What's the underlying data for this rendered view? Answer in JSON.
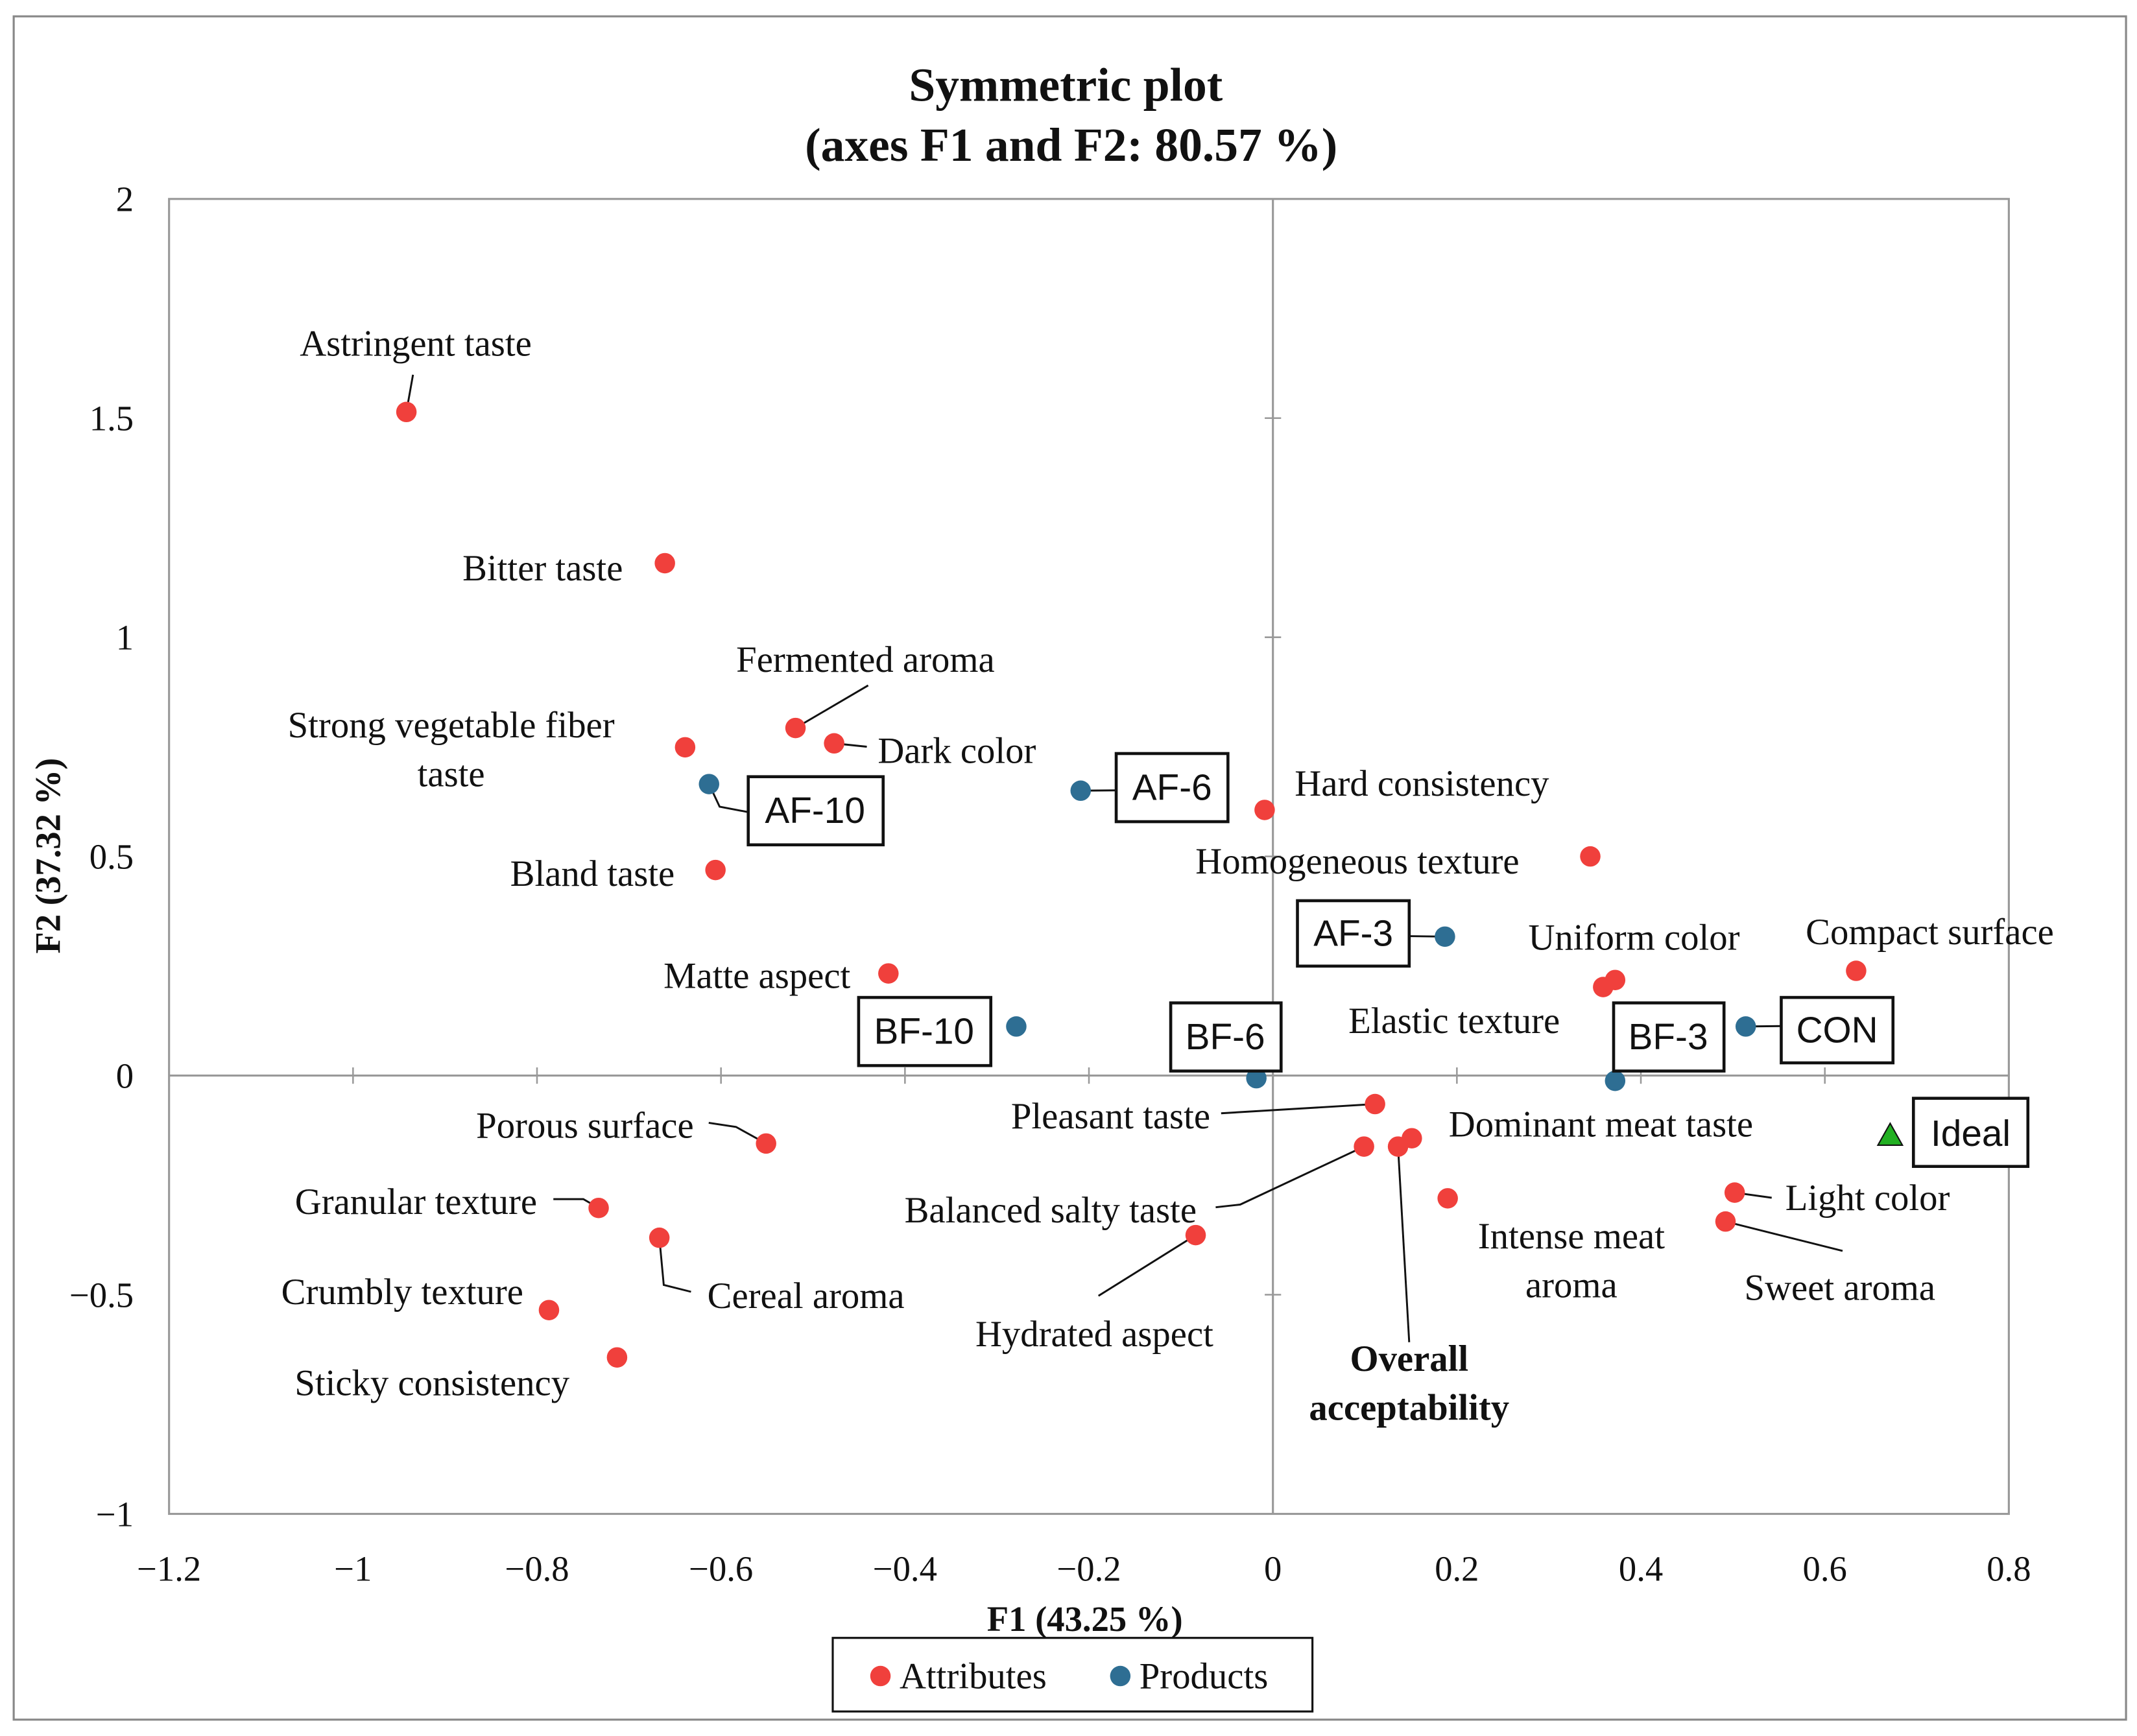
{
  "chart_data": {
    "type": "scatter",
    "title": [
      "Symmetric plot",
      "(axes F1 and F2: 80.57 %)"
    ],
    "xlabel": "F1 (43.25 %)",
    "ylabel": "F2 (37.32 %)",
    "xlim": [
      -1.2,
      0.8
    ],
    "ylim": [
      -1,
      2
    ],
    "xticks": [
      -1.2,
      -1,
      -0.8,
      -0.6,
      -0.4,
      -0.2,
      0,
      0.2,
      0.4,
      0.6,
      0.8
    ],
    "xtick_labels": [
      "−1.2",
      "−1",
      "−0.8",
      "−0.6",
      "−0.4",
      "−0.2",
      "0",
      "0.2",
      "0.4",
      "0.6",
      "0.8"
    ],
    "yticks": [
      -1,
      -0.5,
      0,
      0.5,
      1,
      1.5,
      2
    ],
    "ytick_labels": [
      "−1",
      "−0.5",
      "0",
      "0.5",
      "1",
      "1.5",
      "2"
    ],
    "grid": false,
    "legend": {
      "placement": "bottom",
      "entries": [
        "Attributes",
        "Products"
      ]
    },
    "colors": {
      "Attributes": "#f0403c",
      "Products": "#2e6e93",
      "Ideal": "#22b022"
    },
    "points": [
      {
        "label": "Astringent taste",
        "series": "Attributes",
        "x": -0.942,
        "y": 1.514
      },
      {
        "label": "Bitter taste",
        "series": "Attributes",
        "x": -0.661,
        "y": 1.169
      },
      {
        "label": "Fermented aroma",
        "series": "Attributes",
        "x": -0.519,
        "y": 0.793
      },
      {
        "label": "Dark color",
        "series": "Attributes",
        "x": -0.477,
        "y": 0.758
      },
      {
        "label": [
          "Strong vegetable fiber",
          "taste"
        ],
        "series": "Attributes",
        "x": -0.639,
        "y": 0.749
      },
      {
        "label": "AF-10",
        "series": "Products",
        "x": -0.613,
        "y": 0.665
      },
      {
        "label": "AF-6",
        "series": "Products",
        "x": -0.209,
        "y": 0.65
      },
      {
        "label": "Hard consistency",
        "series": "Attributes",
        "x": -0.009,
        "y": 0.606
      },
      {
        "label": "Bland taste",
        "series": "Attributes",
        "x": -0.606,
        "y": 0.469
      },
      {
        "label": "Homogeneous texture",
        "series": "Attributes",
        "x": 0.345,
        "y": 0.5
      },
      {
        "label": "AF-3",
        "series": "Products",
        "x": 0.187,
        "y": 0.317
      },
      {
        "label": "Uniform color",
        "series": "Attributes",
        "x": 0.372,
        "y": 0.218
      },
      {
        "label": "Elastic texture",
        "series": "Attributes",
        "x": 0.359,
        "y": 0.202
      },
      {
        "label": "Compact surface",
        "series": "Attributes",
        "x": 0.634,
        "y": 0.239
      },
      {
        "label": "Matte aspect",
        "series": "Attributes",
        "x": -0.418,
        "y": 0.233
      },
      {
        "label": "BF-10",
        "series": "Products",
        "x": -0.279,
        "y": 0.112
      },
      {
        "label": "CON",
        "series": "Products",
        "x": 0.514,
        "y": 0.112
      },
      {
        "label": "BF-6",
        "series": "Products",
        "x": -0.018,
        "y": -0.006
      },
      {
        "label": "BF-3",
        "series": "Products",
        "x": 0.372,
        "y": -0.012
      },
      {
        "label": "Pleasant taste",
        "series": "Attributes",
        "x": 0.111,
        "y": -0.065
      },
      {
        "label": "Dominant meat taste",
        "series": "Attributes",
        "x": 0.151,
        "y": -0.143
      },
      {
        "label": "Balanced salty taste",
        "series": "Attributes",
        "x": 0.099,
        "y": -0.162
      },
      {
        "label": [
          "Overall",
          "acceptability"
        ],
        "series": "Attributes",
        "x": 0.136,
        "y": -0.162
      },
      {
        "label": [
          "Intense meat",
          "aroma"
        ],
        "series": "Attributes",
        "x": 0.19,
        "y": -0.28
      },
      {
        "label": "Light color",
        "series": "Attributes",
        "x": 0.502,
        "y": -0.267
      },
      {
        "label": "Sweet aroma",
        "series": "Attributes",
        "x": 0.492,
        "y": -0.333
      },
      {
        "label": "Ideal",
        "series": "Ideal",
        "x": 0.671,
        "y": -0.137
      },
      {
        "label": "Porous surface",
        "series": "Attributes",
        "x": -0.551,
        "y": -0.155
      },
      {
        "label": "Granular texture",
        "series": "Attributes",
        "x": -0.733,
        "y": -0.302
      },
      {
        "label": "Cereal aroma",
        "series": "Attributes",
        "x": -0.667,
        "y": -0.37
      },
      {
        "label": "Hydrated aspect",
        "series": "Attributes",
        "x": -0.084,
        "y": -0.364
      },
      {
        "label": "Crumbly texture",
        "series": "Attributes",
        "x": -0.787,
        "y": -0.535
      },
      {
        "label": "Sticky consistency",
        "series": "Attributes",
        "x": -0.713,
        "y": -0.643
      }
    ]
  }
}
